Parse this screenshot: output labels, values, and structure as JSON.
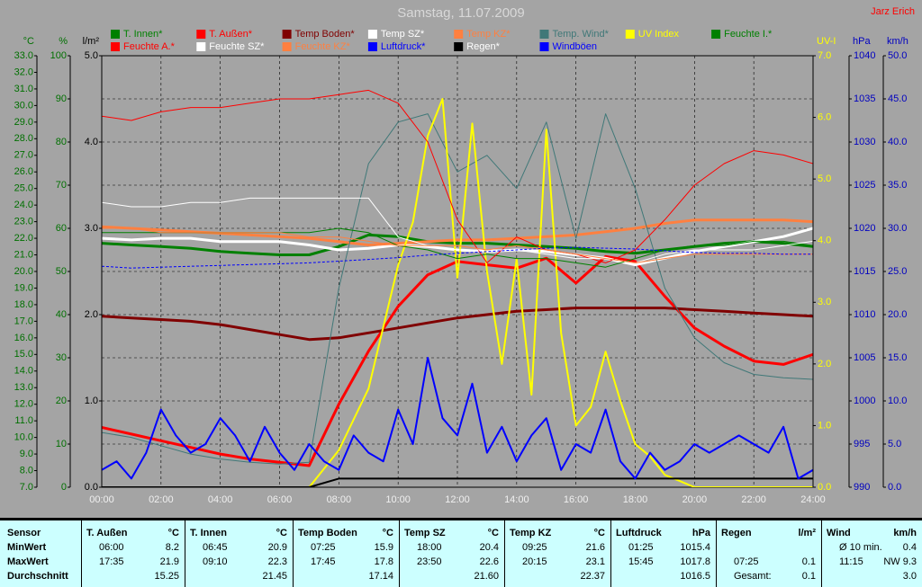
{
  "chart_data": {
    "type": "line",
    "title": "Samstag, 11.07.2009",
    "author": "Jarz Erich",
    "x": [
      0,
      1,
      2,
      3,
      4,
      5,
      6,
      7,
      8,
      9,
      10,
      11,
      12,
      13,
      14,
      15,
      16,
      17,
      18,
      19,
      20,
      21,
      22,
      23,
      24
    ],
    "xlim": [
      0,
      24
    ],
    "xticks": [
      {
        "value": 0,
        "label": "00:00"
      },
      {
        "value": 2,
        "label": "02:00"
      },
      {
        "value": 4,
        "label": "04:00"
      },
      {
        "value": 6,
        "label": "06:00"
      },
      {
        "value": 8,
        "label": "08:00"
      },
      {
        "value": 10,
        "label": "10:00"
      },
      {
        "value": 12,
        "label": "12:00"
      },
      {
        "value": 14,
        "label": "14:00"
      },
      {
        "value": 16,
        "label": "16:00"
      },
      {
        "value": 18,
        "label": "18:00"
      },
      {
        "value": 20,
        "label": "20:00"
      },
      {
        "value": 22,
        "label": "22:00"
      },
      {
        "value": 24,
        "label": "24:00"
      }
    ],
    "grid": true,
    "grid_axis": 1,
    "axes": [
      {
        "title": "°C",
        "side": "left",
        "color": "#007000",
        "lim": [
          7,
          33
        ],
        "ticks": [
          {
            "value": 7,
            "label": "7.0"
          },
          {
            "value": 8,
            "label": "8.0"
          },
          {
            "value": 9,
            "label": "9.0"
          },
          {
            "value": 10,
            "label": "10.0"
          },
          {
            "value": 11,
            "label": "11.0"
          },
          {
            "value": 12,
            "label": "12.0"
          },
          {
            "value": 13,
            "label": "13.0"
          },
          {
            "value": 14,
            "label": "14.0"
          },
          {
            "value": 15,
            "label": "15.0"
          },
          {
            "value": 16,
            "label": "16.0"
          },
          {
            "value": 17,
            "label": "17.0"
          },
          {
            "value": 18,
            "label": "18.0"
          },
          {
            "value": 19,
            "label": "19.0"
          },
          {
            "value": 20,
            "label": "20.0"
          },
          {
            "value": 21,
            "label": "21.0"
          },
          {
            "value": 22,
            "label": "22.0"
          },
          {
            "value": 23,
            "label": "23.0"
          },
          {
            "value": 24,
            "label": "24.0"
          },
          {
            "value": 25,
            "label": "25.0"
          },
          {
            "value": 26,
            "label": "26.0"
          },
          {
            "value": 27,
            "label": "27.0"
          },
          {
            "value": 28,
            "label": "28.0"
          },
          {
            "value": 29,
            "label": "29.0"
          },
          {
            "value": 30,
            "label": "30.0"
          },
          {
            "value": 31,
            "label": "31.0"
          },
          {
            "value": 32,
            "label": "32.0"
          },
          {
            "value": 33,
            "label": "33.0"
          }
        ]
      },
      {
        "title": "%",
        "side": "left",
        "color": "#007000",
        "lim": [
          0,
          100
        ],
        "ticks": [
          0,
          10,
          20,
          30,
          40,
          50,
          60,
          70,
          80,
          90,
          100
        ]
      },
      {
        "title": "l/m²",
        "side": "left",
        "color": "#000000",
        "lim": [
          0,
          5
        ],
        "ticks": [
          {
            "value": 0,
            "label": "0.0"
          },
          {
            "value": 1,
            "label": "1.0"
          },
          {
            "value": 2,
            "label": "2.0"
          },
          {
            "value": 3,
            "label": "3.0"
          },
          {
            "value": 4,
            "label": "4.0"
          },
          {
            "value": 5,
            "label": "5.0"
          }
        ]
      },
      {
        "title": "UV-I",
        "side": "right",
        "color": "#ffff00",
        "lim": [
          0,
          7
        ],
        "ticks": [
          {
            "value": 0,
            "label": "0.0"
          },
          {
            "value": 1,
            "label": "1.0"
          },
          {
            "value": 2,
            "label": "2.0"
          },
          {
            "value": 3,
            "label": "3.0"
          },
          {
            "value": 4,
            "label": "4.0"
          },
          {
            "value": 5,
            "label": "5.0"
          },
          {
            "value": 6,
            "label": "6.0"
          },
          {
            "value": 7,
            "label": "7.0"
          }
        ]
      },
      {
        "title": "hPa",
        "side": "right",
        "color": "#0000c0",
        "lim": [
          990,
          1040
        ],
        "ticks": [
          990,
          995,
          1000,
          1005,
          1010,
          1015,
          1020,
          1025,
          1030,
          1035,
          1040
        ]
      },
      {
        "title": "km/h",
        "side": "right",
        "color": "#0000c0",
        "lim": [
          0,
          50
        ],
        "ticks": [
          {
            "value": 0,
            "label": "0.0"
          },
          {
            "value": 5,
            "label": "5.0"
          },
          {
            "value": 10,
            "label": "10.0"
          },
          {
            "value": 15,
            "label": "15.0"
          },
          {
            "value": 20,
            "label": "20.0"
          },
          {
            "value": 25,
            "label": "25.0"
          },
          {
            "value": 30,
            "label": "30.0"
          },
          {
            "value": 35,
            "label": "35.0"
          },
          {
            "value": 40,
            "label": "40.0"
          },
          {
            "value": 45,
            "label": "45.0"
          },
          {
            "value": 50,
            "label": "50.0"
          }
        ]
      }
    ],
    "series": [
      {
        "name": "T. Innen*",
        "color": "#008000",
        "axis": 0,
        "width": 3,
        "values": [
          21.7,
          21.6,
          21.5,
          21.4,
          21.2,
          21.1,
          21.0,
          21.0,
          21.5,
          22.2,
          22.1,
          21.8,
          21.7,
          21.7,
          21.6,
          21.5,
          21.4,
          21.2,
          21.1,
          21.3,
          21.5,
          21.7,
          21.8,
          21.7,
          21.5
        ]
      },
      {
        "name": "T. Außen*",
        "color": "#ff0000",
        "axis": 0,
        "width": 3,
        "values": [
          10.6,
          10.2,
          9.8,
          9.4,
          9.0,
          8.7,
          8.5,
          8.3,
          12.0,
          15.2,
          17.9,
          19.8,
          20.6,
          20.4,
          20.2,
          20.8,
          19.3,
          20.9,
          20.6,
          18.5,
          16.6,
          15.5,
          14.6,
          14.4,
          15.0
        ]
      },
      {
        "name": "Temp Boden*",
        "color": "#800000",
        "axis": 0,
        "width": 3,
        "values": [
          17.3,
          17.2,
          17.1,
          17.0,
          16.8,
          16.5,
          16.2,
          15.9,
          16.0,
          16.3,
          16.6,
          16.9,
          17.2,
          17.4,
          17.6,
          17.7,
          17.8,
          17.8,
          17.8,
          17.8,
          17.7,
          17.6,
          17.5,
          17.4,
          17.3
        ]
      },
      {
        "name": "Temp SZ*",
        "color": "#ffffff",
        "axis": 0,
        "width": 3,
        "values": [
          22.0,
          21.9,
          22.0,
          22.0,
          21.8,
          21.8,
          21.8,
          21.6,
          21.3,
          21.4,
          21.6,
          21.5,
          21.3,
          21.2,
          21.3,
          21.2,
          21.0,
          20.8,
          20.4,
          20.8,
          21.2,
          21.5,
          21.8,
          22.1,
          22.6
        ]
      },
      {
        "name": "Temp KZ*",
        "color": "#ff8040",
        "axis": 0,
        "width": 3,
        "values": [
          22.7,
          22.6,
          22.5,
          22.4,
          22.3,
          22.2,
          22.1,
          22.0,
          21.8,
          21.6,
          21.7,
          21.8,
          21.9,
          21.9,
          22.0,
          22.1,
          22.2,
          22.4,
          22.6,
          22.9,
          23.1,
          23.1,
          23.1,
          23.1,
          23.0
        ]
      },
      {
        "name": "Temp. Wind*",
        "color": "#407878",
        "axis": 0,
        "width": 1,
        "values": [
          10.3,
          10.0,
          9.5,
          9.0,
          8.7,
          8.5,
          8.4,
          8.5,
          19.0,
          26.5,
          29.0,
          29.5,
          26.0,
          27.0,
          25.0,
          29.0,
          22.0,
          29.5,
          25.0,
          19.0,
          16.0,
          14.5,
          13.8,
          13.6,
          13.5
        ]
      },
      {
        "name": "UV Index",
        "color": "#ffff00",
        "axis": 3,
        "width": 2,
        "x": [
          0,
          0.5,
          1,
          1.5,
          2,
          2.5,
          3,
          3.5,
          4,
          4.5,
          5,
          5.5,
          6,
          6.5,
          7,
          7.5,
          8,
          8.5,
          9,
          9.5,
          10,
          10.5,
          11,
          11.5,
          12,
          12.5,
          13,
          13.5,
          14,
          14.5,
          15,
          15.5,
          16,
          16.5,
          17,
          17.5,
          18,
          18.5,
          19,
          19.5,
          20,
          20.5,
          21,
          21.5,
          22,
          22.5,
          23,
          23.5,
          24
        ],
        "values": [
          0,
          0,
          0,
          0,
          0,
          0,
          0,
          0,
          0,
          0,
          0,
          0,
          0,
          0,
          0,
          0.3,
          0.6,
          1.1,
          1.6,
          2.6,
          3.6,
          4.3,
          5.7,
          6.3,
          3.4,
          5.9,
          3.5,
          2.0,
          3.7,
          1.5,
          5.8,
          2.5,
          1.0,
          1.3,
          2.2,
          1.4,
          0.7,
          0.5,
          0.2,
          0.1,
          0,
          0,
          0,
          0,
          0,
          0,
          0,
          0,
          0
        ]
      },
      {
        "name": "Feuchte I.*",
        "color": "#008000",
        "axis": 1,
        "width": 1,
        "values": [
          59,
          59,
          59,
          59,
          59,
          59,
          59,
          59,
          60,
          59,
          56,
          55,
          53,
          54,
          53,
          53,
          52,
          51,
          53,
          55,
          56,
          56,
          57,
          57,
          56
        ]
      },
      {
        "name": "Feuchte A.*",
        "color": "#ff0000",
        "axis": 1,
        "width": 1,
        "values": [
          86,
          85,
          87,
          88,
          88,
          89,
          90,
          90,
          91,
          92,
          89,
          80,
          62,
          52,
          58,
          55,
          54,
          52,
          55,
          62,
          70,
          75,
          78,
          77,
          75
        ]
      },
      {
        "name": "Feuchte SZ*",
        "color": "#ffffff",
        "axis": 1,
        "width": 1,
        "values": [
          66,
          65,
          65,
          66,
          66,
          67,
          67,
          67,
          67,
          67,
          58,
          56,
          55,
          55,
          55,
          54,
          53,
          53,
          52,
          54,
          55,
          55,
          55,
          56,
          57
        ]
      },
      {
        "name": "Feuchte KZ*",
        "color": "#ff8040",
        "axis": 1,
        "width": 1,
        "values": [
          60,
          60,
          59,
          59,
          59,
          59,
          59,
          58,
          58,
          57,
          56,
          56,
          56,
          55,
          56,
          55,
          54,
          53,
          52,
          53,
          54,
          54,
          54,
          54,
          54
        ]
      },
      {
        "name": "Luftdruck*",
        "color": "#0000ff",
        "axis": 4,
        "width": 1,
        "dash": true,
        "values": [
          1015.6,
          1015.4,
          1015.5,
          1015.6,
          1015.7,
          1015.8,
          1015.9,
          1016.0,
          1016.2,
          1016.4,
          1016.6,
          1016.9,
          1017.1,
          1017.3,
          1017.5,
          1017.7,
          1017.8,
          1017.7,
          1017.6,
          1017.4,
          1017.2,
          1017.1,
          1017.1,
          1017.0,
          1017.0
        ]
      },
      {
        "name": "Regen*",
        "color": "#000000",
        "axis": 2,
        "width": 2,
        "values": [
          0,
          0,
          0,
          0,
          0,
          0,
          0,
          0,
          0.1,
          0.1,
          0.1,
          0.1,
          0.1,
          0.1,
          0.1,
          0.1,
          0.1,
          0.1,
          0.1,
          0.1,
          0.1,
          0.1,
          0.1,
          0.1,
          0.1
        ]
      },
      {
        "name": "Windböen",
        "color": "#0000ff",
        "axis": 5,
        "width": 2,
        "x": [
          0,
          0.5,
          1,
          1.5,
          2,
          2.5,
          3,
          3.5,
          4,
          4.5,
          5,
          5.5,
          6,
          6.5,
          7,
          7.5,
          8,
          8.5,
          9,
          9.5,
          10,
          10.5,
          11,
          11.5,
          12,
          12.5,
          13,
          13.5,
          14,
          14.5,
          15,
          15.5,
          16,
          16.5,
          17,
          17.5,
          18,
          18.5,
          19,
          19.5,
          20,
          20.5,
          21,
          21.5,
          22,
          22.5,
          23,
          23.5,
          24
        ],
        "values": [
          2,
          3,
          1,
          4,
          9,
          6,
          4,
          5,
          8,
          6,
          3,
          7,
          4,
          2,
          5,
          3,
          2,
          6,
          4,
          3,
          9,
          5,
          15,
          8,
          6,
          12,
          4,
          7,
          3,
          6,
          8,
          2,
          5,
          4,
          9,
          3,
          1,
          4,
          2,
          3,
          5,
          4,
          5,
          6,
          5,
          4,
          7,
          1,
          2
        ]
      }
    ]
  },
  "table": {
    "header": "Sensor",
    "columns": [
      {
        "name": "T. Außen",
        "unit": "°C"
      },
      {
        "name": "T. Innen",
        "unit": "°C"
      },
      {
        "name": "Temp Boden",
        "unit": "°C"
      },
      {
        "name": "Temp SZ",
        "unit": "°C"
      },
      {
        "name": "Temp KZ",
        "unit": "°C"
      },
      {
        "name": "Luftdruck",
        "unit": "hPa"
      },
      {
        "name": "Regen",
        "unit": "l/m²"
      },
      {
        "name": "Wind",
        "unit": "km/h"
      }
    ],
    "rows": [
      {
        "label": "MinWert",
        "cells": [
          [
            "06:00",
            "8.2"
          ],
          [
            "06:45",
            "20.9"
          ],
          [
            "07:25",
            "15.9"
          ],
          [
            "18:00",
            "20.4"
          ],
          [
            "09:25",
            "21.6"
          ],
          [
            "01:25",
            "1015.4"
          ],
          [
            null,
            null
          ],
          [
            "Ø 10 min.",
            "0.4"
          ]
        ]
      },
      {
        "label": "MaxWert",
        "cells": [
          [
            "17:35",
            "21.9"
          ],
          [
            "09:10",
            "22.3"
          ],
          [
            "17:45",
            "17.8"
          ],
          [
            "23:50",
            "22.6"
          ],
          [
            "20:15",
            "23.1"
          ],
          [
            "15:45",
            "1017.8"
          ],
          [
            "07:25",
            "0.1"
          ],
          [
            "11:15",
            "NW 9.3"
          ]
        ]
      },
      {
        "label": "Durchschnitt",
        "cells": [
          [
            null,
            "15.25"
          ],
          [
            null,
            "21.45"
          ],
          [
            null,
            "17.14"
          ],
          [
            null,
            "21.60"
          ],
          [
            null,
            "22.37"
          ],
          [
            null,
            "1016.5"
          ],
          [
            "Gesamt:",
            "0.1"
          ],
          [
            null,
            "3.0"
          ]
        ]
      }
    ]
  }
}
